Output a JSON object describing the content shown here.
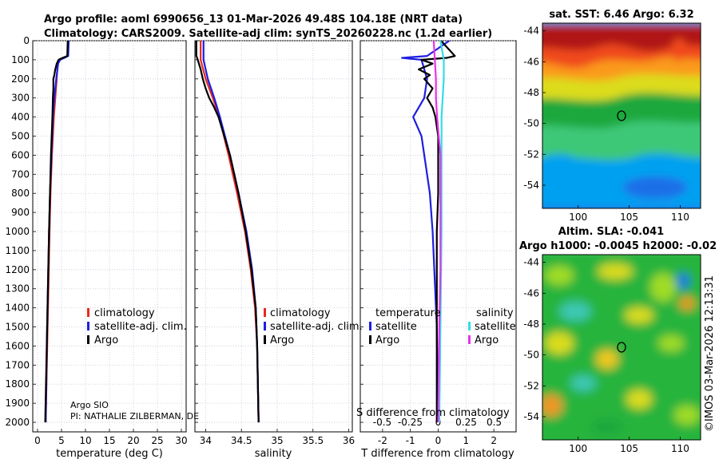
{
  "title_line1": "Argo profile: aoml 6990656_13 01-Mar-2026 49.48S 104.18E (NRT data)",
  "title_line2": "Climatology: CARS2009. Satellite-adj clim: synTS_20260228.nc (1.2d earlier)",
  "argo_info": {
    "line1": "Argo SIO",
    "line2": "PI: NATHALIE ZILBERMAN, DE"
  },
  "overlap_text": "S difference from climatology",
  "timestamp": "©IMOS 03-Mar-2026 12:13:31",
  "colors": {
    "climatology": "#e8281e",
    "satellite": "#1e1ee0",
    "argo": "#000000",
    "sat_salinity": "#33dde8",
    "argo_salinity": "#e833e8"
  },
  "legend_panel": {
    "climatology": "climatology",
    "satellite": "satellite-adj. clim.",
    "argo": "Argo"
  },
  "legend_diff": {
    "temp_title": "temperature",
    "sal_title": "salinity",
    "satellite": "satellite",
    "argo": "Argo"
  },
  "depth_ticks": [
    "0",
    "100",
    "200",
    "300",
    "400",
    "500",
    "600",
    "700",
    "800",
    "900",
    "1000",
    "1100",
    "1200",
    "1300",
    "1400",
    "1500",
    "1600",
    "1700",
    "1800",
    "1900",
    "2000"
  ],
  "sst_map": {
    "title": "sat. SST: 6.46 Argo: 6.32",
    "x_ticks": [
      "100",
      "105",
      "110"
    ],
    "y_ticks": [
      "-44",
      "-46",
      "-48",
      "-50",
      "-52",
      "-54"
    ]
  },
  "sla_map": {
    "title1": "Altim. SLA: -0.041",
    "title2": "Argo h1000: -0.0045 h2000: -0.02",
    "x_ticks": [
      "100",
      "105",
      "110"
    ],
    "y_ticks": [
      "-44",
      "-46",
      "-48",
      "-50",
      "-52",
      "-54"
    ]
  },
  "chart_data": [
    {
      "type": "line",
      "name": "temperature-profile",
      "xlabel": "temperature (deg C)",
      "xlim": [
        -1,
        31
      ],
      "ylim": [
        2050,
        0
      ],
      "x_ticks": [
        "0",
        "5",
        "10",
        "15",
        "20",
        "25",
        "30"
      ],
      "series": [
        {
          "name": "climatology",
          "depth": [
            0,
            80,
            90,
            100,
            120,
            200,
            300,
            400,
            600,
            800,
            1000,
            1500,
            2000
          ],
          "values": [
            6.4,
            6.3,
            5.4,
            4.6,
            4.2,
            4.0,
            3.7,
            3.4,
            3.0,
            2.7,
            2.5,
            2.1,
            1.7
          ]
        },
        {
          "name": "satellite-adj. clim.",
          "depth": [
            0,
            80,
            90,
            100,
            120,
            200,
            300,
            400,
            600,
            800,
            1000,
            1500,
            2000
          ],
          "values": [
            6.5,
            6.4,
            5.6,
            4.7,
            4.3,
            3.9,
            3.5,
            3.2,
            2.9,
            2.6,
            2.4,
            2.0,
            1.7
          ]
        },
        {
          "name": "Argo",
          "depth": [
            0,
            80,
            90,
            100,
            120,
            150,
            180,
            200,
            250,
            300,
            400,
            600,
            800,
            1000,
            1500,
            2000
          ],
          "values": [
            6.3,
            6.2,
            5.2,
            4.4,
            4.0,
            3.7,
            3.5,
            3.3,
            3.3,
            3.2,
            3.1,
            2.8,
            2.6,
            2.4,
            2.0,
            1.6
          ]
        }
      ]
    },
    {
      "type": "line",
      "name": "salinity-profile",
      "xlabel": "salinity",
      "xlim": [
        33.85,
        36.05
      ],
      "ylim": [
        2050,
        0
      ],
      "x_ticks": [
        "34",
        "34.5",
        "35",
        "35.5",
        "36"
      ],
      "series": [
        {
          "name": "climatology",
          "depth": [
            0,
            100,
            200,
            300,
            400,
            600,
            800,
            1000,
            1200,
            1400,
            1600,
            1800,
            2000
          ],
          "values": [
            33.93,
            33.93,
            34.0,
            34.1,
            34.19,
            34.32,
            34.44,
            34.55,
            34.63,
            34.69,
            34.72,
            34.73,
            34.74
          ]
        },
        {
          "name": "satellite-adj. clim.",
          "depth": [
            0,
            100,
            200,
            300,
            400,
            600,
            800,
            1000,
            1200,
            1400,
            1600,
            1800,
            2000
          ],
          "values": [
            33.97,
            33.97,
            34.03,
            34.12,
            34.2,
            34.34,
            34.46,
            34.57,
            34.65,
            34.7,
            34.72,
            34.73,
            34.74
          ]
        },
        {
          "name": "Argo",
          "depth": [
            0,
            80,
            100,
            150,
            200,
            250,
            300,
            350,
            400,
            600,
            800,
            1000,
            1200,
            1400,
            1600,
            1800,
            2000
          ],
          "values": [
            33.87,
            33.87,
            33.89,
            33.93,
            33.96,
            34.0,
            34.05,
            34.12,
            34.18,
            34.34,
            34.46,
            34.56,
            34.64,
            34.7,
            34.72,
            34.73,
            34.74
          ]
        }
      ]
    },
    {
      "type": "line",
      "name": "difference-profile",
      "xlabel": "T difference from climatology",
      "xlim": [
        -2.8,
        2.8
      ],
      "ylim": [
        2050,
        0
      ],
      "x_ticks": [
        "-2",
        "-1",
        "0",
        "1",
        "2"
      ],
      "x_ticks_salinity": [
        "-0.5",
        "-0.25",
        "0",
        "0.25",
        "0.5"
      ],
      "series": [
        {
          "name": "temperature satellite",
          "depth": [
            0,
            80,
            90,
            100,
            150,
            200,
            300,
            400,
            500,
            800,
            1000,
            1500,
            2000
          ],
          "values": [
            0.4,
            -0.4,
            -1.3,
            -0.6,
            -0.5,
            -0.4,
            -0.5,
            -0.9,
            -0.6,
            -0.3,
            -0.2,
            -0.05,
            0.0
          ]
        },
        {
          "name": "temperature Argo",
          "depth": [
            0,
            80,
            90,
            100,
            120,
            150,
            180,
            200,
            250,
            300,
            350,
            400,
            500,
            800,
            1000,
            1500,
            2000
          ],
          "values": [
            0.1,
            0.6,
            0.3,
            -0.6,
            -0.2,
            -0.7,
            -0.3,
            -0.5,
            -0.2,
            -0.4,
            -0.2,
            -0.1,
            0.0,
            0.0,
            -0.05,
            -0.05,
            -0.05
          ]
        },
        {
          "name": "salinity satellite",
          "depth": [
            0,
            100,
            200,
            300,
            400,
            600,
            800,
            1000,
            1500,
            2000
          ],
          "values": [
            0.02,
            0.05,
            0.05,
            0.04,
            0.03,
            0.03,
            0.03,
            0.03,
            0.02,
            0.01
          ]
        },
        {
          "name": "salinity Argo",
          "depth": [
            0,
            100,
            200,
            300,
            400,
            600,
            800,
            1000,
            1200,
            1500,
            2000
          ],
          "values": [
            -0.04,
            -0.03,
            -0.02,
            -0.02,
            -0.01,
            0.02,
            0.02,
            0.02,
            0.02,
            0.01,
            0.0
          ]
        }
      ]
    }
  ]
}
